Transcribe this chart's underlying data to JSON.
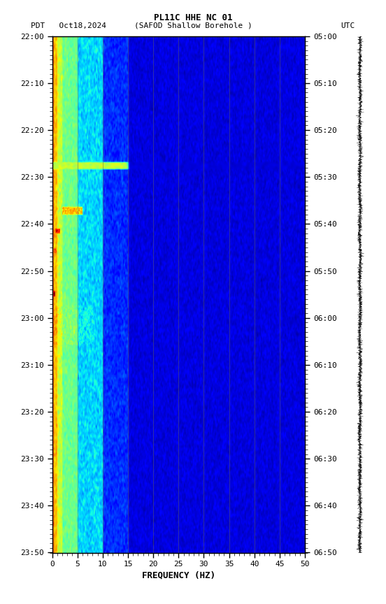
{
  "title_line1": "PL11C HHE NC 01",
  "title_line2_left": "PDT   Oct18,2024",
  "title_line2_center": "(SAFOD Shallow Borehole )",
  "title_line2_right": "UTC",
  "xlabel": "FREQUENCY (HZ)",
  "freq_min": 0,
  "freq_max": 50,
  "left_time_labels": [
    "22:00",
    "22:10",
    "22:20",
    "22:30",
    "22:40",
    "22:50",
    "23:00",
    "23:10",
    "23:20",
    "23:30",
    "23:40",
    "23:50"
  ],
  "right_time_labels": [
    "05:00",
    "05:10",
    "05:20",
    "05:30",
    "05:40",
    "05:50",
    "06:00",
    "06:10",
    "06:20",
    "06:30",
    "06:40",
    "06:50"
  ],
  "background_color": "#ffffff",
  "fig_width": 5.52,
  "fig_height": 8.64,
  "dpi": 100,
  "vertical_lines_freq": [
    5,
    10,
    15,
    20,
    25,
    30,
    35,
    40,
    45
  ],
  "n_time": 720,
  "n_freq": 500,
  "vmin": -3,
  "vmax": 3
}
